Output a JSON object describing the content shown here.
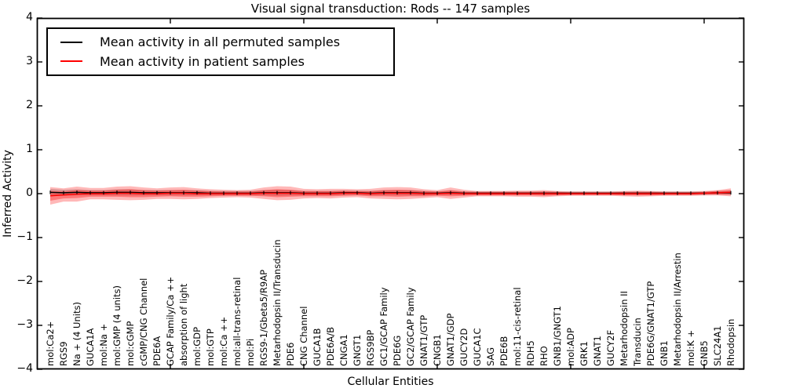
{
  "title": "Visual signal transduction: Rods -- 147 samples",
  "xlabel": "Cellular Entities",
  "ylabel": "Inferred Activity",
  "legend": {
    "items": [
      {
        "label": "Mean activity in all permuted samples",
        "color": "#000000"
      },
      {
        "label": "Mean activity in patient samples",
        "color": "#ff0000"
      }
    ]
  },
  "chart_data": {
    "type": "line",
    "title": "Visual signal transduction: Rods -- 147 samples",
    "xlabel": "Cellular Entities",
    "ylabel": "Inferred Activity",
    "ylim": [
      -4,
      4
    ],
    "yticks": [
      {
        "value": 4,
        "label": "4"
      },
      {
        "value": 3,
        "label": "3"
      },
      {
        "value": 2,
        "label": "2"
      },
      {
        "value": 1,
        "label": "1"
      },
      {
        "value": 0,
        "label": "0"
      },
      {
        "value": -1,
        "label": "−1"
      },
      {
        "value": -2,
        "label": "−2"
      },
      {
        "value": -3,
        "label": "−3"
      },
      {
        "value": -4,
        "label": "−4"
      }
    ],
    "xlim": [
      0,
      53
    ],
    "xtick_values": [
      10,
      20,
      30,
      40,
      50
    ],
    "grid": false,
    "legend_position": "upper left",
    "categories": [
      "mol:Ca2+",
      "RGS9",
      "Na + (4 Units)",
      "GUCA1A",
      "mol:Na +",
      "mol:GMP (4 units)",
      "mol:cGMP",
      "cGMP/CNG Channel",
      "PDE6A",
      "GCAP Family/Ca ++",
      "absorption of light",
      "mol:GDP",
      "mol:GTP",
      "mol:Ca ++",
      "mol:all-trans-retinal",
      "mol:Pi",
      "RGS9-1/Gbeta5/R9AP",
      "Metarhodopsin II/Transducin",
      "PDE6",
      "CNG Channel",
      "GUCA1B",
      "PDE6A/B",
      "CNGA1",
      "GNGT1",
      "RGS9BP",
      "GC1/GCAP Family",
      "PDE6G",
      "GC2/GCAP Family",
      "GNAT1/GTP",
      "CNGB1",
      "GNAT1/GDP",
      "GUCY2D",
      "GUCA1C",
      "SAG",
      "PDE6B",
      "mol:11-cis-retinal",
      "RDH5",
      "RHO",
      "GNB1/GNGT1",
      "mol:ADP",
      "GRK1",
      "GNAT1",
      "GUCY2F",
      "Metarhodopsin II",
      "Transducin",
      "PDE6G/GNAT1/GTP",
      "GNB1",
      "Metarhodopsin II/Arrestin",
      "mol:K +",
      "GNB5",
      "SLC24A1",
      "Rhodopsin"
    ],
    "series": [
      {
        "name": "Mean activity in all permuted samples",
        "color": "#000000",
        "values": [
          0.03,
          0.02,
          0.03,
          0.02,
          0.02,
          0.03,
          0.03,
          0.02,
          0.02,
          0.02,
          0.02,
          0.02,
          0.01,
          0.01,
          0.01,
          0.01,
          0.02,
          0.02,
          0.02,
          0.01,
          0.01,
          0.01,
          0.02,
          0.02,
          0.01,
          0.02,
          0.02,
          0.02,
          0.01,
          0.01,
          0.02,
          0.01,
          0.01,
          0.01,
          0.01,
          0.01,
          0.01,
          0.01,
          0.01,
          0.01,
          0.01,
          0.01,
          0.01,
          0.01,
          0.01,
          0.01,
          0.01,
          0.01,
          0.01,
          0.01,
          0.02,
          0.02
        ]
      },
      {
        "name": "Mean activity in patient samples",
        "color": "#ff0000",
        "values": [
          -0.05,
          -0.03,
          -0.01,
          0.0,
          0.0,
          0.01,
          0.01,
          0.0,
          0.0,
          0.01,
          0.01,
          0.0,
          0.0,
          0.0,
          0.0,
          0.0,
          0.01,
          0.01,
          0.01,
          0.0,
          0.0,
          0.0,
          0.01,
          0.01,
          0.0,
          0.01,
          0.01,
          0.01,
          0.0,
          0.0,
          0.01,
          0.0,
          0.0,
          0.0,
          0.0,
          0.0,
          0.0,
          0.0,
          0.0,
          0.0,
          0.0,
          0.0,
          0.0,
          0.0,
          0.0,
          0.0,
          0.0,
          0.0,
          0.0,
          0.01,
          0.02,
          0.03
        ]
      }
    ],
    "envelopes": [
      {
        "name": "permuted-samples-range",
        "center_series": 0,
        "color": "#777777",
        "opacity": 0.35,
        "half_widths": [
          0.08,
          0.07,
          0.07,
          0.06,
          0.06,
          0.07,
          0.07,
          0.06,
          0.06,
          0.06,
          0.06,
          0.06,
          0.05,
          0.05,
          0.05,
          0.05,
          0.06,
          0.07,
          0.06,
          0.05,
          0.05,
          0.05,
          0.05,
          0.05,
          0.05,
          0.06,
          0.06,
          0.06,
          0.05,
          0.04,
          0.05,
          0.04,
          0.04,
          0.04,
          0.04,
          0.04,
          0.04,
          0.04,
          0.04,
          0.04,
          0.04,
          0.04,
          0.04,
          0.04,
          0.04,
          0.04,
          0.04,
          0.04,
          0.04,
          0.04,
          0.04,
          0.05
        ]
      },
      {
        "name": "patient-samples-range",
        "center_series": 1,
        "color": "#ff0000",
        "opacity": 0.28,
        "half_widths": [
          0.2,
          0.15,
          0.17,
          0.13,
          0.13,
          0.15,
          0.16,
          0.14,
          0.12,
          0.13,
          0.14,
          0.12,
          0.1,
          0.09,
          0.08,
          0.09,
          0.13,
          0.16,
          0.15,
          0.11,
          0.1,
          0.11,
          0.1,
          0.09,
          0.11,
          0.13,
          0.14,
          0.13,
          0.1,
          0.08,
          0.13,
          0.09,
          0.06,
          0.06,
          0.06,
          0.07,
          0.07,
          0.08,
          0.06,
          0.05,
          0.05,
          0.05,
          0.05,
          0.06,
          0.07,
          0.06,
          0.05,
          0.05,
          0.05,
          0.05,
          0.06,
          0.09
        ]
      },
      {
        "name": "patient-samples-inner-range",
        "center_series": 1,
        "color": "#ff0000",
        "opacity": 0.35,
        "half_widths": [
          0.11,
          0.08,
          0.09,
          0.07,
          0.07,
          0.08,
          0.09,
          0.08,
          0.07,
          0.07,
          0.08,
          0.07,
          0.06,
          0.05,
          0.05,
          0.05,
          0.07,
          0.09,
          0.08,
          0.06,
          0.06,
          0.06,
          0.06,
          0.05,
          0.06,
          0.07,
          0.08,
          0.07,
          0.06,
          0.05,
          0.07,
          0.05,
          0.04,
          0.04,
          0.04,
          0.04,
          0.04,
          0.05,
          0.04,
          0.03,
          0.03,
          0.03,
          0.03,
          0.04,
          0.04,
          0.04,
          0.03,
          0.03,
          0.03,
          0.03,
          0.04,
          0.05
        ]
      }
    ]
  }
}
